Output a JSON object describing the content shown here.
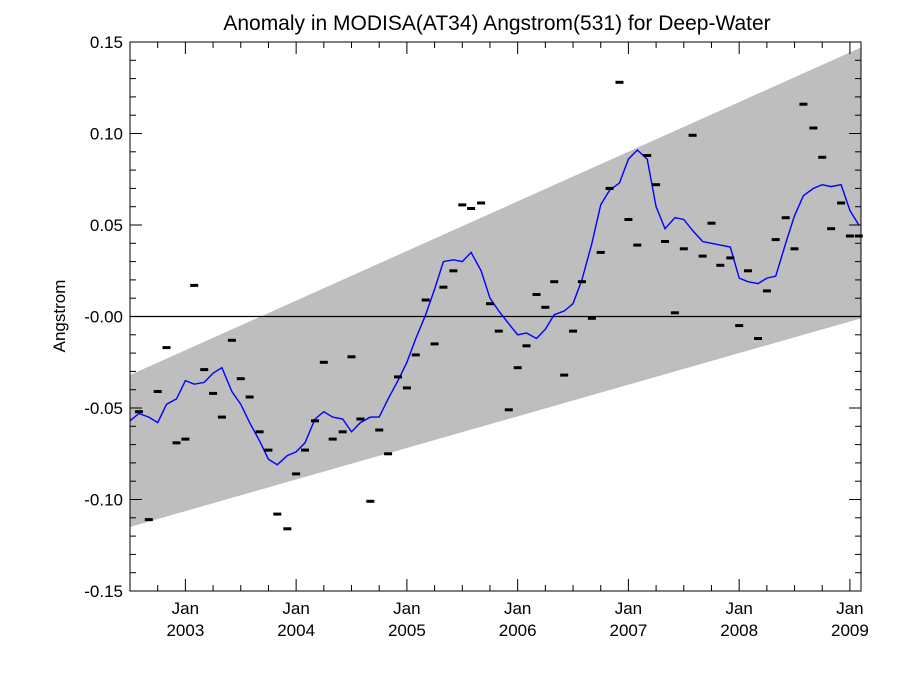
{
  "chart_data": {
    "type": "line",
    "title": "Anomaly in MODISA(AT34) Angstrom(531) for Deep-Water",
    "xlabel": "",
    "ylabel": "Angstrom",
    "xlim": [
      2002.5,
      2009.1
    ],
    "ylim": [
      -0.15,
      0.15
    ],
    "yticks": [
      0.15,
      0.1,
      0.05,
      0.0,
      -0.05,
      -0.1,
      -0.15
    ],
    "ytick_labels": [
      "0.15",
      "0.10",
      "0.05",
      "-0.00",
      "-0.05",
      "-0.10",
      "-0.15"
    ],
    "xticks": [
      {
        "x": 2003.0,
        "month": "Jan",
        "year": "2003"
      },
      {
        "x": 2004.0,
        "month": "Jan",
        "year": "2004"
      },
      {
        "x": 2005.0,
        "month": "Jan",
        "year": "2005"
      },
      {
        "x": 2006.0,
        "month": "Jan",
        "year": "2006"
      },
      {
        "x": 2007.0,
        "month": "Jan",
        "year": "2007"
      },
      {
        "x": 2008.0,
        "month": "Jan",
        "year": "2008"
      },
      {
        "x": 2009.0,
        "month": "Jan",
        "year": "2009"
      }
    ],
    "zero_line": 0.0,
    "colors": {
      "band": "#bebebe",
      "line": "#0000ff",
      "points": "#000000",
      "zero_line": "#000000"
    },
    "band": {
      "lower": [
        [
          2002.5,
          -0.115
        ],
        [
          2009.1,
          -0.001
        ]
      ],
      "upper": [
        [
          2002.5,
          -0.032
        ],
        [
          2009.1,
          0.147
        ]
      ]
    },
    "series": [
      {
        "kind": "line",
        "x": [
          2002.5,
          2002.58,
          2002.67,
          2002.75,
          2002.83,
          2002.92,
          2003.0,
          2003.08,
          2003.17,
          2003.25,
          2003.33,
          2003.42,
          2003.5,
          2003.58,
          2003.67,
          2003.75,
          2003.83,
          2003.92,
          2004.0,
          2004.08,
          2004.17,
          2004.25,
          2004.33,
          2004.42,
          2004.5,
          2004.58,
          2004.67,
          2004.75,
          2004.83,
          2004.92,
          2005.0,
          2005.08,
          2005.17,
          2005.25,
          2005.33,
          2005.42,
          2005.5,
          2005.58,
          2005.67,
          2005.75,
          2005.83,
          2005.92,
          2006.0,
          2006.08,
          2006.17,
          2006.25,
          2006.33,
          2006.42,
          2006.5,
          2006.58,
          2006.67,
          2006.75,
          2006.83,
          2006.92,
          2007.0,
          2007.08,
          2007.17,
          2007.25,
          2007.33,
          2007.42,
          2007.5,
          2007.58,
          2007.67,
          2007.75,
          2007.83,
          2007.92,
          2008.0,
          2008.08,
          2008.17,
          2008.25,
          2008.33,
          2008.42,
          2008.5,
          2008.58,
          2008.67,
          2008.75,
          2008.83,
          2008.92,
          2009.0,
          2009.08
        ],
        "y": [
          -0.057,
          -0.053,
          -0.055,
          -0.058,
          -0.048,
          -0.045,
          -0.035,
          -0.037,
          -0.036,
          -0.031,
          -0.028,
          -0.041,
          -0.048,
          -0.058,
          -0.068,
          -0.078,
          -0.081,
          -0.076,
          -0.074,
          -0.069,
          -0.056,
          -0.052,
          -0.055,
          -0.056,
          -0.063,
          -0.058,
          -0.055,
          -0.055,
          -0.045,
          -0.035,
          -0.025,
          -0.012,
          0.001,
          0.015,
          0.03,
          0.031,
          0.03,
          0.035,
          0.025,
          0.01,
          0.003,
          -0.004,
          -0.01,
          -0.009,
          -0.012,
          -0.007,
          0.001,
          0.003,
          0.007,
          0.02,
          0.04,
          0.061,
          0.069,
          0.073,
          0.086,
          0.091,
          0.086,
          0.06,
          0.048,
          0.054,
          0.053,
          0.047,
          0.041,
          0.04,
          0.039,
          0.038,
          0.021,
          0.019,
          0.018,
          0.021,
          0.022,
          0.04,
          0.055,
          0.066,
          0.07,
          0.072,
          0.071,
          0.072,
          0.058,
          0.05
        ]
      },
      {
        "kind": "points",
        "x": [
          2002.58,
          2002.67,
          2002.75,
          2002.83,
          2002.92,
          2003.0,
          2003.08,
          2003.17,
          2003.25,
          2003.33,
          2003.42,
          2003.5,
          2003.58,
          2003.67,
          2003.75,
          2003.83,
          2003.92,
          2004.0,
          2004.08,
          2004.17,
          2004.25,
          2004.33,
          2004.42,
          2004.5,
          2004.58,
          2004.67,
          2004.75,
          2004.83,
          2004.92,
          2005.0,
          2005.08,
          2005.17,
          2005.25,
          2005.33,
          2005.42,
          2005.5,
          2005.58,
          2005.67,
          2005.75,
          2005.83,
          2005.92,
          2006.0,
          2006.08,
          2006.17,
          2006.25,
          2006.33,
          2006.42,
          2006.5,
          2006.58,
          2006.67,
          2006.75,
          2006.83,
          2006.92,
          2007.0,
          2007.08,
          2007.17,
          2007.25,
          2007.33,
          2007.42,
          2007.5,
          2007.58,
          2007.67,
          2007.75,
          2007.83,
          2007.92,
          2008.0,
          2008.08,
          2008.17,
          2008.25,
          2008.33,
          2008.42,
          2008.5,
          2008.58,
          2008.67,
          2008.75,
          2008.83,
          2008.92,
          2009.0,
          2009.08
        ],
        "y": [
          -0.052,
          -0.111,
          -0.041,
          -0.017,
          -0.069,
          -0.067,
          0.017,
          -0.029,
          -0.042,
          -0.055,
          -0.013,
          -0.034,
          -0.044,
          -0.063,
          -0.073,
          -0.108,
          -0.116,
          -0.086,
          -0.073,
          -0.057,
          -0.025,
          -0.067,
          -0.063,
          -0.022,
          -0.056,
          -0.101,
          -0.062,
          -0.075,
          -0.033,
          -0.039,
          -0.021,
          0.009,
          -0.015,
          0.016,
          0.025,
          0.061,
          0.059,
          0.062,
          0.007,
          -0.008,
          -0.051,
          -0.028,
          -0.016,
          0.012,
          0.005,
          0.019,
          -0.032,
          -0.008,
          0.019,
          -0.001,
          0.035,
          0.07,
          0.128,
          0.053,
          0.039,
          0.088,
          0.072,
          0.041,
          0.002,
          0.037,
          0.099,
          0.033,
          0.051,
          0.028,
          0.032,
          -0.005,
          0.025,
          -0.012,
          0.014,
          0.042,
          0.054,
          0.037,
          0.116,
          0.103,
          0.087,
          0.048,
          0.062,
          0.044,
          0.044
        ]
      }
    ]
  }
}
